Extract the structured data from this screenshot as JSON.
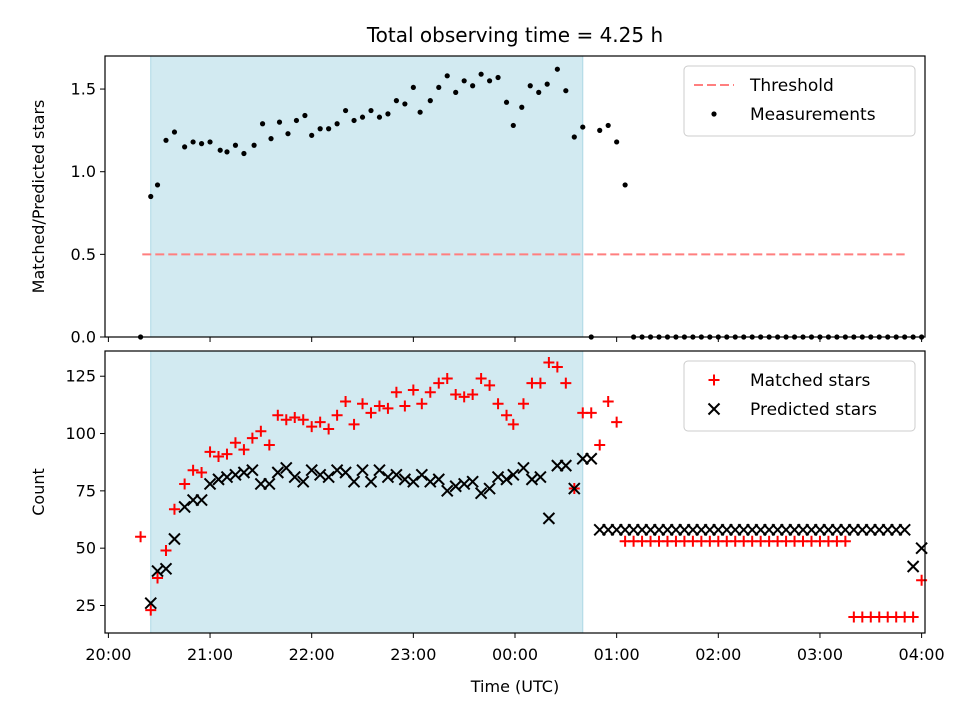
{
  "chart_data": {
    "title": "Total observing time = 4.25 h",
    "xlabel": "Time (UTC)",
    "x_ticks": [
      "20:00",
      "21:00",
      "22:00",
      "23:00",
      "00:00",
      "01:00",
      "02:00",
      "03:00",
      "04:00"
    ],
    "shaded_interval": [
      "20:25",
      "00:40"
    ],
    "shade_color": "#add8e6",
    "panels": [
      {
        "type": "scatter",
        "ylabel": "Matched/Predicted stars",
        "ylim": [
          0,
          1.7
        ],
        "y_ticks": [
          "0.0",
          "0.5",
          "1.0",
          "1.5"
        ],
        "threshold": {
          "value": 0.5,
          "x_range": [
            "20:20",
            "03:50"
          ],
          "color": "#ff7f7f",
          "label": "Threshold"
        },
        "legend_position": "upper right",
        "series": [
          {
            "name": "Measurements",
            "marker": "dot",
            "color": "#000000",
            "x": [
              "20:19",
              "20:25",
              "20:29",
              "20:34",
              "20:39",
              "20:45",
              "20:50",
              "20:55",
              "21:00",
              "21:06",
              "21:10",
              "21:15",
              "21:20",
              "21:26",
              "21:31",
              "21:36",
              "21:41",
              "21:46",
              "21:51",
              "21:56",
              "22:00",
              "22:05",
              "22:10",
              "22:15",
              "22:20",
              "22:25",
              "22:30",
              "22:35",
              "22:40",
              "22:45",
              "22:50",
              "22:55",
              "23:00",
              "23:04",
              "23:10",
              "23:15",
              "23:20",
              "23:25",
              "23:30",
              "23:35",
              "23:40",
              "23:45",
              "23:50",
              "23:55",
              "23:59",
              "00:04",
              "00:09",
              "00:14",
              "00:19",
              "00:25",
              "00:30",
              "00:35",
              "00:40",
              "00:45",
              "00:50",
              "00:55",
              "01:00",
              "01:05",
              "01:10",
              "01:15",
              "01:20",
              "01:25",
              "01:30",
              "01:35",
              "01:40",
              "01:45",
              "01:50",
              "01:55",
              "02:00",
              "02:05",
              "02:10",
              "02:15",
              "02:20",
              "02:25",
              "02:30",
              "02:35",
              "02:40",
              "02:45",
              "02:50",
              "02:55",
              "03:00",
              "03:05",
              "03:10",
              "03:15",
              "03:20",
              "03:25",
              "03:30",
              "03:35",
              "03:40",
              "03:45",
              "03:50",
              "03:55",
              "04:00"
            ],
            "y": [
              0.0,
              0.85,
              0.92,
              1.19,
              1.24,
              1.15,
              1.18,
              1.17,
              1.18,
              1.13,
              1.12,
              1.16,
              1.11,
              1.16,
              1.29,
              1.2,
              1.3,
              1.23,
              1.31,
              1.34,
              1.22,
              1.26,
              1.26,
              1.29,
              1.37,
              1.31,
              1.33,
              1.37,
              1.33,
              1.35,
              1.43,
              1.41,
              1.51,
              1.36,
              1.43,
              1.51,
              1.58,
              1.48,
              1.55,
              1.52,
              1.59,
              1.55,
              1.57,
              1.42,
              1.28,
              1.39,
              1.52,
              1.48,
              1.53,
              1.62,
              1.49,
              1.21,
              1.27,
              0.0,
              1.25,
              1.28,
              1.18,
              0.92,
              0.0,
              0.0,
              0.0,
              0.0,
              0.0,
              0.0,
              0.0,
              0.0,
              0.0,
              0.0,
              0.0,
              0.0,
              0.0,
              0.0,
              0.0,
              0.0,
              0.0,
              0.0,
              0.0,
              0.0,
              0.0,
              0.0,
              0.0,
              0.0,
              0.0,
              0.0,
              0.0,
              0.0,
              0.0,
              0.0,
              0.0,
              0.0,
              0.0,
              0.0,
              0.0
            ]
          }
        ]
      },
      {
        "type": "scatter",
        "ylabel": "Count",
        "ylim": [
          13,
          136
        ],
        "y_ticks": [
          "25",
          "50",
          "75",
          "100",
          "125"
        ],
        "legend_position": "upper right",
        "series": [
          {
            "name": "Matched stars",
            "marker": "plus",
            "color": "#ff0000",
            "x": [
              "20:19",
              "20:25",
              "20:29",
              "20:34",
              "20:39",
              "20:45",
              "20:50",
              "20:55",
              "21:00",
              "21:05",
              "21:10",
              "21:15",
              "21:20",
              "21:25",
              "21:30",
              "21:35",
              "21:40",
              "21:45",
              "21:50",
              "21:55",
              "22:00",
              "22:05",
              "22:10",
              "22:15",
              "22:20",
              "22:25",
              "22:30",
              "22:35",
              "22:40",
              "22:45",
              "22:50",
              "22:55",
              "23:00",
              "23:05",
              "23:10",
              "23:15",
              "23:20",
              "23:25",
              "23:30",
              "23:35",
              "23:40",
              "23:45",
              "23:50",
              "23:55",
              "23:59",
              "00:05",
              "00:10",
              "00:15",
              "00:20",
              "00:25",
              "00:30",
              "00:35",
              "00:40",
              "00:45",
              "00:50",
              "00:55",
              "01:00",
              "01:05",
              "01:10",
              "01:15",
              "01:20",
              "01:25",
              "01:30",
              "01:35",
              "01:40",
              "01:45",
              "01:50",
              "01:55",
              "02:00",
              "02:05",
              "02:10",
              "02:15",
              "02:20",
              "02:25",
              "02:30",
              "02:35",
              "02:40",
              "02:45",
              "02:50",
              "02:55",
              "03:00",
              "03:05",
              "03:10",
              "03:15",
              "03:20",
              "03:25",
              "03:30",
              "03:35",
              "03:40",
              "03:45",
              "03:50",
              "03:55",
              "04:00"
            ],
            "y": [
              55,
              23,
              37,
              49,
              67,
              78,
              84,
              83,
              92,
              90,
              91,
              96,
              93,
              98,
              101,
              95,
              108,
              106,
              107,
              106,
              103,
              105,
              102,
              108,
              114,
              104,
              113,
              109,
              112,
              111,
              118,
              112,
              119,
              113,
              118,
              122,
              124,
              117,
              116,
              117,
              124,
              121,
              113,
              108,
              104,
              113,
              122,
              122,
              131,
              129,
              122,
              76,
              109,
              109,
              95,
              114,
              105,
              53,
              53,
              53,
              53,
              53,
              53,
              53,
              53,
              53,
              53,
              53,
              53,
              53,
              53,
              53,
              53,
              53,
              53,
              53,
              53,
              53,
              53,
              53,
              53,
              53,
              53,
              53,
              20,
              20,
              20,
              20,
              20,
              20,
              20,
              20,
              36
            ]
          },
          {
            "name": "Predicted stars",
            "marker": "x",
            "color": "#000000",
            "x": [
              "20:25",
              "20:29",
              "20:34",
              "20:39",
              "20:45",
              "20:50",
              "20:55",
              "21:00",
              "21:05",
              "21:10",
              "21:15",
              "21:20",
              "21:25",
              "21:30",
              "21:35",
              "21:40",
              "21:45",
              "21:50",
              "21:55",
              "22:00",
              "22:05",
              "22:10",
              "22:15",
              "22:20",
              "22:25",
              "22:30",
              "22:35",
              "22:40",
              "22:45",
              "22:50",
              "22:55",
              "23:00",
              "23:05",
              "23:10",
              "23:15",
              "23:20",
              "23:25",
              "23:30",
              "23:35",
              "23:40",
              "23:45",
              "23:50",
              "23:55",
              "23:59",
              "00:05",
              "00:10",
              "00:15",
              "00:20",
              "00:25",
              "00:30",
              "00:35",
              "00:40",
              "00:45",
              "00:50",
              "00:55",
              "01:00",
              "01:05",
              "01:10",
              "01:15",
              "01:20",
              "01:25",
              "01:30",
              "01:35",
              "01:40",
              "01:45",
              "01:50",
              "01:55",
              "02:00",
              "02:05",
              "02:10",
              "02:15",
              "02:20",
              "02:25",
              "02:30",
              "02:35",
              "02:40",
              "02:45",
              "02:50",
              "02:55",
              "03:00",
              "03:05",
              "03:10",
              "03:15",
              "03:20",
              "03:25",
              "03:30",
              "03:35",
              "03:40",
              "03:45",
              "03:50",
              "03:55",
              "04:00"
            ],
            "y": [
              26,
              40,
              41,
              54,
              68,
              71,
              71,
              78,
              80,
              81,
              82,
              83,
              84,
              78,
              78,
              83,
              85,
              81,
              79,
              84,
              82,
              81,
              84,
              83,
              79,
              84,
              79,
              84,
              81,
              82,
              80,
              79,
              82,
              79,
              80,
              75,
              77,
              78,
              79,
              74,
              76,
              81,
              80,
              82,
              85,
              80,
              81,
              63,
              86,
              86,
              76,
              89,
              89,
              58,
              58,
              58,
              58,
              58,
              58,
              58,
              58,
              58,
              58,
              58,
              58,
              58,
              58,
              58,
              58,
              58,
              58,
              58,
              58,
              58,
              58,
              58,
              58,
              58,
              58,
              58,
              58,
              58,
              58,
              58,
              58,
              58,
              58,
              58,
              58,
              58,
              42,
              50
            ]
          }
        ]
      }
    ]
  }
}
